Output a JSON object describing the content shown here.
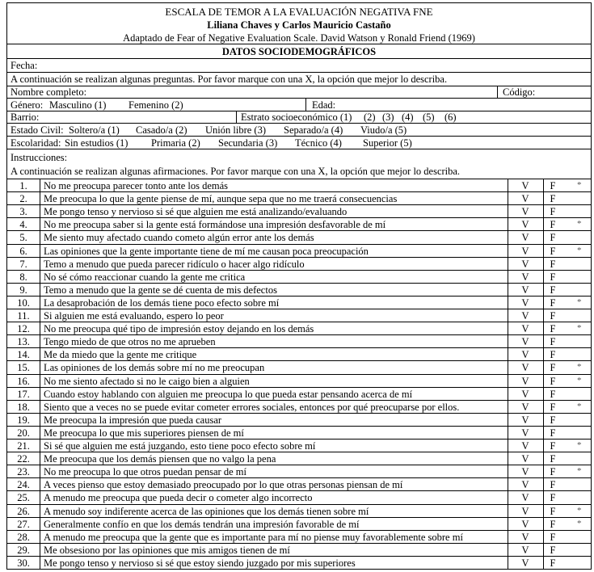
{
  "header": {
    "title": "ESCALA DE TEMOR A LA EVALUACIÓN NEGATIVA FNE",
    "authors": "Liliana Chaves y Carlos Mauricio Castaño",
    "source": "Adaptado de Fear of Negative Evaluation Scale. David Watson y Ronald Friend (1969)"
  },
  "demographics": {
    "section_title": "DATOS SOCIODEMOGRÁFICOS",
    "fecha": "Fecha:",
    "intro": "A continuación se realizan algunas preguntas. Por favor marque con una X, la opción que mejor lo describa.",
    "nombre": "Nombre completo:",
    "codigo": "Código:",
    "genero_label": "Género:",
    "genero_options": [
      "Masculino (1)",
      "Femenino (2)"
    ],
    "edad": "Edad:",
    "barrio": "Barrio:",
    "estrato_label": "Estrato socioeconómico (1)",
    "estrato_options": [
      "(2)",
      "(3)",
      "(4)",
      "(5)",
      "(6)"
    ],
    "estado_label": "Estado Civil:",
    "estado_options": [
      "Soltero/a (1)",
      "Casado/a (2)",
      "Unión libre (3)",
      "Separado/a (4)",
      "Viudo/a (5)"
    ],
    "escolaridad_label": "Escolaridad:",
    "escolaridad_options": [
      "Sin estudios (1)",
      "Primaria (2)",
      "Secundaria (3)",
      "Técnico (4)",
      "Superior (5)"
    ]
  },
  "instructions": {
    "label": "Instrucciones:",
    "text": "A continuación se realizan algunas afirmaciones. Por favor marque con una X, la opción que mejor lo describa."
  },
  "answer_labels": {
    "true": "V",
    "false": "F",
    "reverse_mark": "*"
  },
  "items": [
    {
      "n": "1.",
      "text": "No me preocupa parecer tonto ante los demás",
      "reverse": true
    },
    {
      "n": "2.",
      "text": "Me preocupa lo que la gente piense de mí, aunque sepa que no me traerá consecuencias",
      "reverse": false
    },
    {
      "n": "3.",
      "text": "Me pongo tenso y nervioso si sé que alguien me está analizando/evaluando",
      "reverse": false
    },
    {
      "n": "4.",
      "text": "No me preocupa saber si la gente está formándose una impresión desfavorable de mí",
      "reverse": true
    },
    {
      "n": "5.",
      "text": "Me siento muy afectado cuando cometo algún error ante los demás",
      "reverse": false
    },
    {
      "n": "6.",
      "text": "Las opiniones que la gente importante tiene de mí me causan poca preocupación",
      "reverse": true
    },
    {
      "n": "7.",
      "text": "Temo a menudo que pueda parecer ridículo o hacer algo ridículo",
      "reverse": false
    },
    {
      "n": "8.",
      "text": "No sé cómo reaccionar cuando la gente me critica",
      "reverse": false
    },
    {
      "n": "9.",
      "text": "Temo a menudo que la gente se dé cuenta de mis defectos",
      "reverse": false
    },
    {
      "n": "10.",
      "text": "La desaprobación de los demás tiene poco efecto sobre mí",
      "reverse": true
    },
    {
      "n": "11.",
      "text": "Si alguien me está evaluando, espero lo peor",
      "reverse": false
    },
    {
      "n": "12.",
      "text": "No me preocupa qué tipo de impresión estoy dejando en los demás",
      "reverse": true
    },
    {
      "n": "13.",
      "text": "Tengo miedo de que otros no me aprueben",
      "reverse": false
    },
    {
      "n": "14.",
      "text": "Me da miedo que la gente me critique",
      "reverse": false
    },
    {
      "n": "15.",
      "text": "Las opiniones de los demás sobre mí no me preocupan",
      "reverse": true
    },
    {
      "n": "16.",
      "text": "No me siento afectado si no le caigo bien a alguien",
      "reverse": true
    },
    {
      "n": "17.",
      "text": "Cuando estoy hablando con alguien me preocupa lo que pueda estar pensando acerca de mí",
      "reverse": false
    },
    {
      "n": "18.",
      "text": "Siento que a veces no se puede evitar cometer errores sociales, entonces por qué preocuparse por ellos.",
      "reverse": true
    },
    {
      "n": "19.",
      "text": "Me preocupa la impresión que pueda causar",
      "reverse": false
    },
    {
      "n": "20.",
      "text": "Me preocupa lo que mis superiores piensen de mí",
      "reverse": false
    },
    {
      "n": "21.",
      "text": "Si sé que alguien me está juzgando, esto tiene poco efecto sobre mí",
      "reverse": true
    },
    {
      "n": "22.",
      "text": "Me preocupa que los demás piensen que no valgo la pena",
      "reverse": false
    },
    {
      "n": "23.",
      "text": "No me preocupa lo que otros puedan pensar de mí",
      "reverse": true
    },
    {
      "n": "24.",
      "text": "A veces pienso que estoy demasiado preocupado por lo que otras personas piensan de mí",
      "reverse": false
    },
    {
      "n": "25.",
      "text": "A menudo me preocupa que pueda decir o cometer algo incorrecto",
      "reverse": false
    },
    {
      "n": "26.",
      "text": "A menudo soy indiferente acerca de las opiniones que los demás tienen sobre mí",
      "reverse": true
    },
    {
      "n": "27.",
      "text": "Generalmente confío en que los demás tendrán una impresión favorable de mí",
      "reverse": true
    },
    {
      "n": "28.",
      "text": "A menudo me preocupa que la gente que es importante para mí no piense muy favorablemente sobre mí",
      "reverse": false
    },
    {
      "n": "29.",
      "text": "Me obsesiono por las opiniones que mis amigos tienen de mí",
      "reverse": false
    },
    {
      "n": "30.",
      "text": "Me pongo tenso y nervioso si sé que estoy siendo juzgado por mis superiores",
      "reverse": false
    }
  ]
}
